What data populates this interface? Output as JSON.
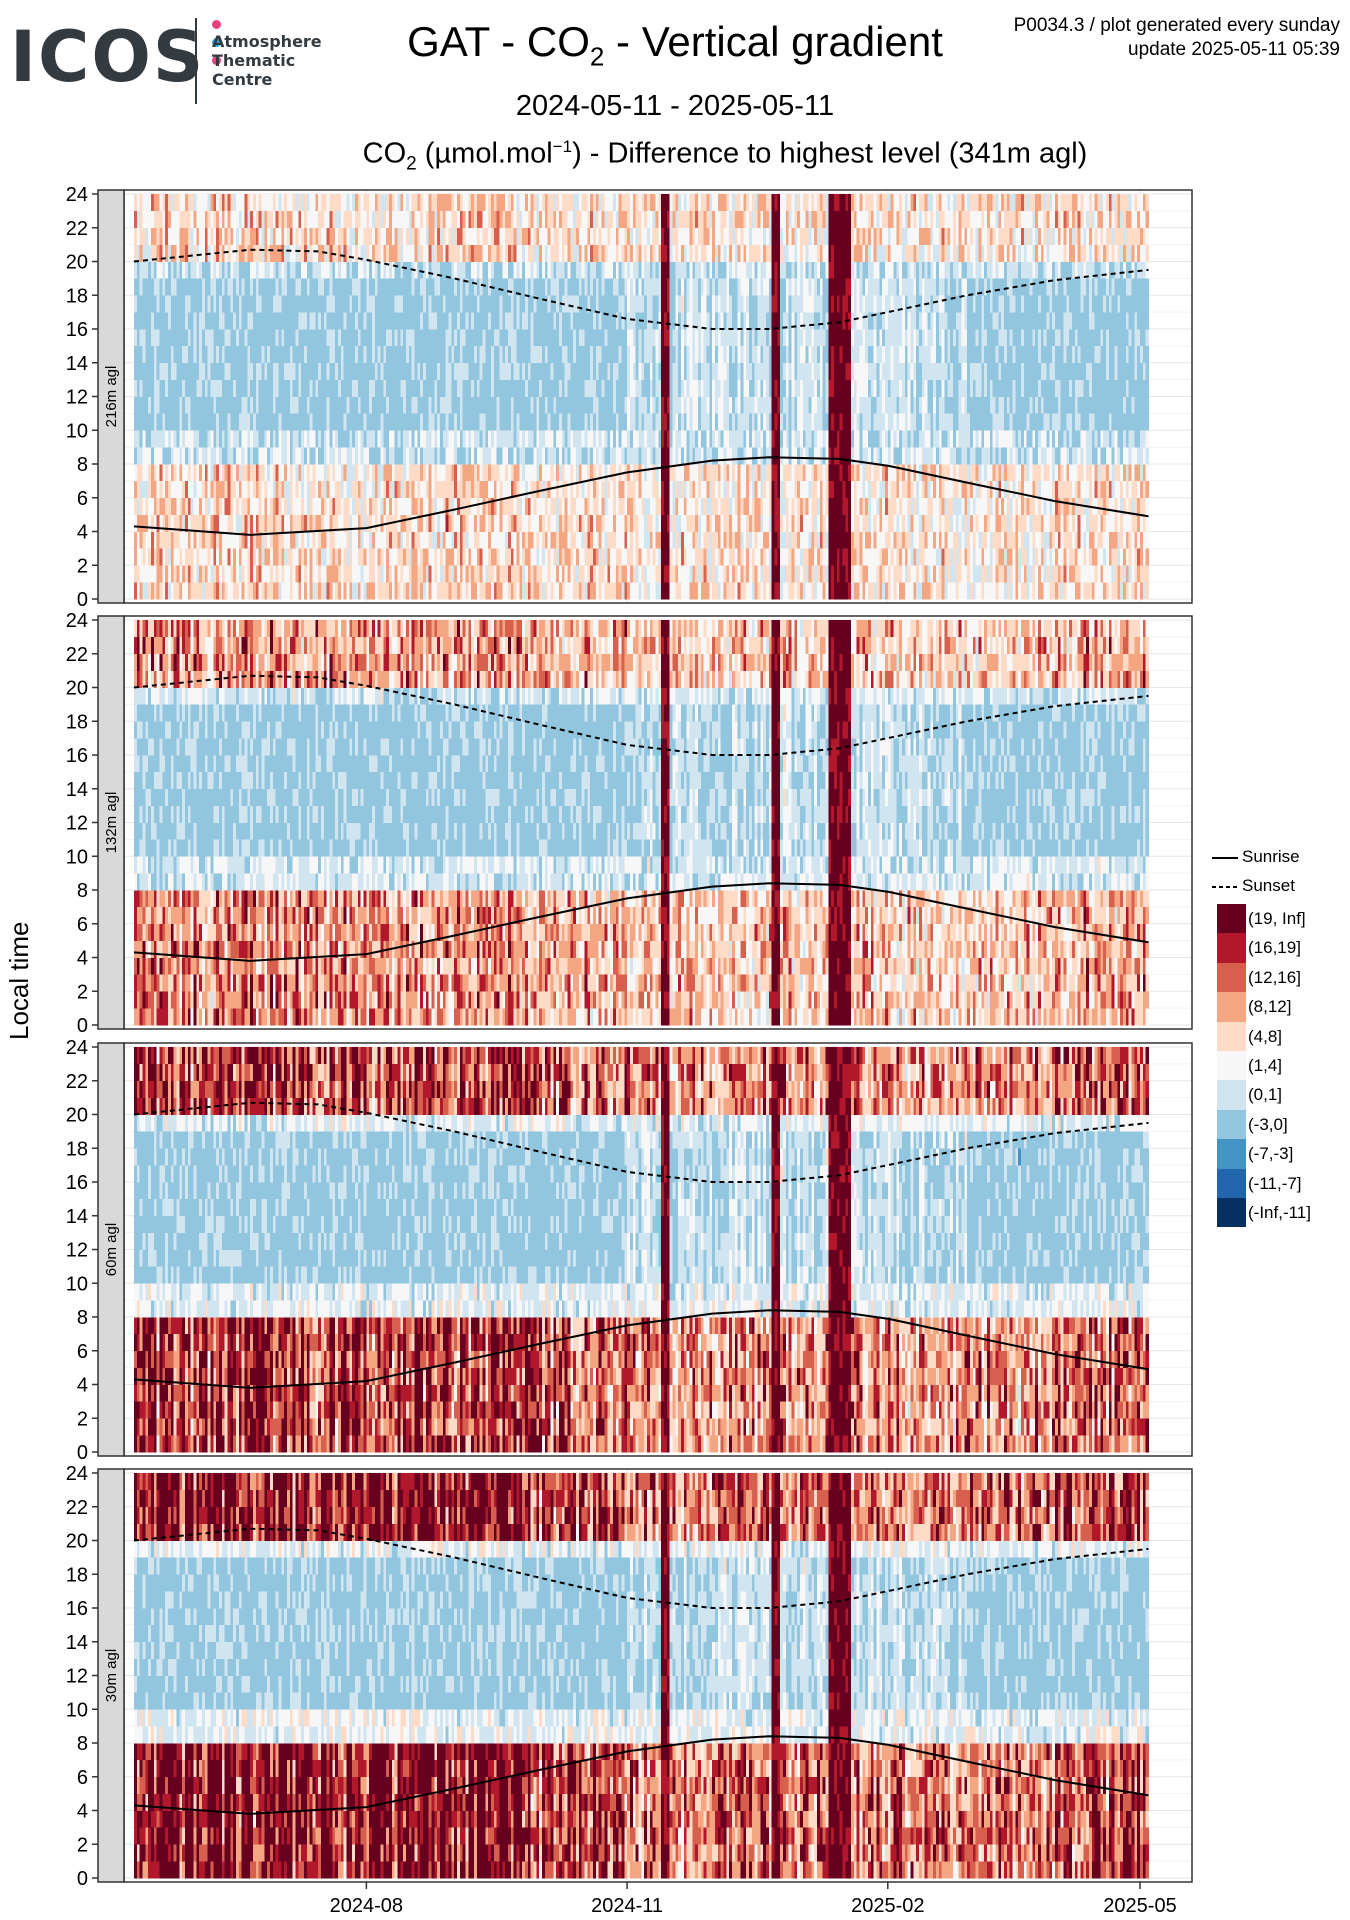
{
  "logo": {
    "wordmark": "ICOS",
    "subtitle_lines": [
      "Atmosphere",
      "Thematic",
      "Centre"
    ],
    "dot_colors": [
      "#e8417a",
      "#2aa6e0",
      "#e8417a"
    ]
  },
  "header": {
    "title_prefix": "GAT - CO",
    "title_sub": "2",
    "title_suffix": " - Vertical gradient",
    "date_range": "2024-05-11 - 2025-05-11",
    "info_line1": "P0034.3 / plot generated every sunday",
    "info_line2": "update  2025-05-11 05:39"
  },
  "chart_data": {
    "type": "heatmap",
    "title_prefix": "CO",
    "title_sub": "2",
    "title_unit_start": " (µmol.mol",
    "title_sup": "−1",
    "title_rest": ") - Difference to highest level (341m agl)",
    "ylabel": "Local time",
    "xlabel": "",
    "x_range": [
      "2024-05-11",
      "2025-05-11"
    ],
    "x_ticks": [
      {
        "date": "2024-08-01",
        "label": "2024-08"
      },
      {
        "date": "2024-11-01",
        "label": "2024-11"
      },
      {
        "date": "2025-02-01",
        "label": "2025-02"
      },
      {
        "date": "2025-05-01",
        "label": "2025-05"
      }
    ],
    "ylim": [
      0,
      24
    ],
    "y_ticks": [
      0,
      2,
      4,
      6,
      8,
      10,
      12,
      14,
      16,
      18,
      20,
      22,
      24
    ],
    "grid": true,
    "facets": [
      {
        "label": "216m agl",
        "height_m": 216
      },
      {
        "label": "132m agl",
        "height_m": 132
      },
      {
        "label": "60m agl",
        "height_m": 60
      },
      {
        "label": "30m agl",
        "height_m": 30
      }
    ],
    "color_bins": [
      {
        "label": "(19, Inf]",
        "color": "#67001f"
      },
      {
        "label": "(16,19]",
        "color": "#b2182b"
      },
      {
        "label": "(12,16]",
        "color": "#d6604d"
      },
      {
        "label": "(8,12]",
        "color": "#f4a582"
      },
      {
        "label": "(4,8]",
        "color": "#fddbc7"
      },
      {
        "label": "(1,4]",
        "color": "#f7f7f7"
      },
      {
        "label": "(0,1]",
        "color": "#d1e5f0"
      },
      {
        "label": "(-3,0]",
        "color": "#92c5de"
      },
      {
        "label": "(-7,-3]",
        "color": "#4393c3"
      },
      {
        "label": "(-11,-7]",
        "color": "#2166ac"
      },
      {
        "label": "(-Inf,-11]",
        "color": "#053061"
      }
    ],
    "lines": [
      {
        "name": "Sunrise",
        "style": "solid",
        "points": [
          [
            "2024-05-11",
            4.3
          ],
          [
            "2024-06-21",
            3.8
          ],
          [
            "2024-08-01",
            4.2
          ],
          [
            "2024-09-01",
            5.3
          ],
          [
            "2024-10-01",
            6.4
          ],
          [
            "2024-11-01",
            7.5
          ],
          [
            "2024-12-01",
            8.2
          ],
          [
            "2024-12-21",
            8.4
          ],
          [
            "2025-01-15",
            8.3
          ],
          [
            "2025-02-01",
            7.9
          ],
          [
            "2025-03-01",
            6.9
          ],
          [
            "2025-04-01",
            5.8
          ],
          [
            "2025-05-04",
            4.9
          ]
        ]
      },
      {
        "name": "Sunset",
        "style": "dashed",
        "points": [
          [
            "2024-05-11",
            20.0
          ],
          [
            "2024-06-21",
            20.7
          ],
          [
            "2024-07-15",
            20.6
          ],
          [
            "2024-08-01",
            20.1
          ],
          [
            "2024-09-01",
            19.0
          ],
          [
            "2024-10-01",
            17.8
          ],
          [
            "2024-11-01",
            16.6
          ],
          [
            "2024-12-01",
            16.0
          ],
          [
            "2024-12-21",
            16.0
          ],
          [
            "2025-01-15",
            16.4
          ],
          [
            "2025-02-01",
            17.0
          ],
          [
            "2025-03-01",
            18.0
          ],
          [
            "2025-04-01",
            18.9
          ],
          [
            "2025-05-04",
            19.5
          ]
        ]
      }
    ]
  }
}
